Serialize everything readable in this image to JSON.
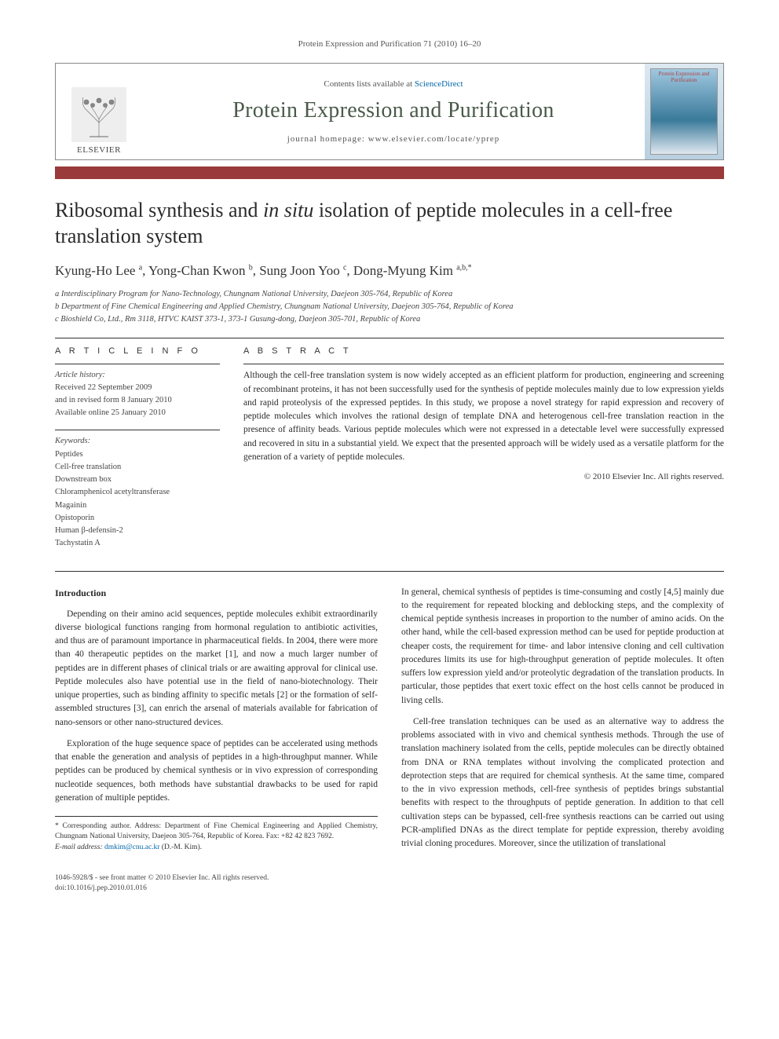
{
  "header": {
    "citation": "Protein Expression and Purification 71 (2010) 16–20"
  },
  "masthead": {
    "publisher": "ELSEVIER",
    "contents_prefix": "Contents lists available at ",
    "contents_link": "ScienceDirect",
    "journal": "Protein Expression and Purification",
    "homepage_label": "journal homepage: ",
    "homepage_url": "www.elsevier.com/locate/yprep",
    "cover_text": "Protein Expression and Purification"
  },
  "article": {
    "title_pre": "Ribosomal synthesis and ",
    "title_em": "in situ",
    "title_post": " isolation of peptide molecules in a cell-free translation system",
    "authors_html": "Kyung-Ho Lee <sup>a</sup>, Yong-Chan Kwon <sup>b</sup>, Sung Joon Yoo <sup>c</sup>, Dong-Myung Kim <sup>a,b,*</sup>",
    "affiliations": [
      "a Interdisciplinary Program for Nano-Technology, Chungnam National University, Daejeon 305-764, Republic of Korea",
      "b Department of Fine Chemical Engineering and Applied Chemistry, Chungnam National University, Daejeon 305-764, Republic of Korea",
      "c Bioshield Co, Ltd., Rm 3118, HTVC KAIST 373-1, 373-1 Gusung-dong, Daejeon 305-701, Republic of Korea"
    ]
  },
  "info": {
    "heading": "A R T I C L E   I N F O",
    "history_label": "Article history:",
    "history": [
      "Received 22 September 2009",
      "and in revised form 8 January 2010",
      "Available online 25 January 2010"
    ],
    "keywords_label": "Keywords:",
    "keywords": [
      "Peptides",
      "Cell-free translation",
      "Downstream box",
      "Chloramphenicol acetyltransferase",
      "Magainin",
      "Opistoporin",
      "Human β-defensin-2",
      "Tachystatin A"
    ]
  },
  "abstract": {
    "heading": "A B S T R A C T",
    "text": "Although the cell-free translation system is now widely accepted as an efficient platform for production, engineering and screening of recombinant proteins, it has not been successfully used for the synthesis of peptide molecules mainly due to low expression yields and rapid proteolysis of the expressed peptides. In this study, we propose a novel strategy for rapid expression and recovery of peptide molecules which involves the rational design of template DNA and heterogenous cell-free translation reaction in the presence of affinity beads. Various peptide molecules which were not expressed in a detectable level were successfully expressed and recovered in situ in a substantial yield. We expect that the presented approach will be widely used as a versatile platform for the generation of a variety of peptide molecules.",
    "copyright": "© 2010 Elsevier Inc. All rights reserved."
  },
  "body": {
    "intro_head": "Introduction",
    "p1": "Depending on their amino acid sequences, peptide molecules exhibit extraordinarily diverse biological functions ranging from hormonal regulation to antibiotic activities, and thus are of paramount importance in pharmaceutical fields. In 2004, there were more than 40 therapeutic peptides on the market [1], and now a much larger number of peptides are in different phases of clinical trials or are awaiting approval for clinical use. Peptide molecules also have potential use in the field of nano-biotechnology. Their unique properties, such as binding affinity to specific metals [2] or the formation of self-assembled structures [3], can enrich the arsenal of materials available for fabrication of nano-sensors or other nano-structured devices.",
    "p2": "Exploration of the huge sequence space of peptides can be accelerated using methods that enable the generation and analysis of peptides in a high-throughput manner. While peptides can be produced by chemical synthesis or in vivo expression of corresponding nucleotide sequences, both methods have substantial drawbacks to be used for rapid generation of multiple peptides.",
    "p3": "In general, chemical synthesis of peptides is time-consuming and costly [4,5] mainly due to the requirement for repeated blocking and deblocking steps, and the complexity of chemical peptide synthesis increases in proportion to the number of amino acids. On the other hand, while the cell-based expression method can be used for peptide production at cheaper costs, the requirement for time- and labor intensive cloning and cell cultivation procedures limits its use for high-throughput generation of peptide molecules. It often suffers low expression yield and/or proteolytic degradation of the translation products. In particular, those peptides that exert toxic effect on the host cells cannot be produced in living cells.",
    "p4": "Cell-free translation techniques can be used as an alternative way to address the problems associated with in vivo and chemical synthesis methods. Through the use of translation machinery isolated from the cells, peptide molecules can be directly obtained from DNA or RNA templates without involving the complicated protection and deprotection steps that are required for chemical synthesis. At the same time, compared to the in vivo expression methods, cell-free synthesis of peptides brings substantial benefits with respect to the throughputs of peptide generation. In addition to that cell cultivation steps can be bypassed, cell-free synthesis reactions can be carried out using PCR-amplified DNAs as the direct template for peptide expression, thereby avoiding trivial cloning procedures. Moreover, since the utilization of translational"
  },
  "footnote": {
    "corr": "* Corresponding author. Address: Department of Fine Chemical Engineering and Applied Chemistry, Chungnam National University, Daejeon 305-764, Republic of Korea. Fax: +82 42 823 7692.",
    "email_label": "E-mail address: ",
    "email": "dmkim@cnu.ac.kr",
    "email_who": " (D.-M. Kim)."
  },
  "footer": {
    "issn": "1046-5928/$ - see front matter © 2010 Elsevier Inc. All rights reserved.",
    "doi": "doi:10.1016/j.pep.2010.01.016"
  },
  "colors": {
    "bar": "#9a3a3a",
    "link": "#0066aa",
    "journal_name": "#4a5a4a"
  }
}
